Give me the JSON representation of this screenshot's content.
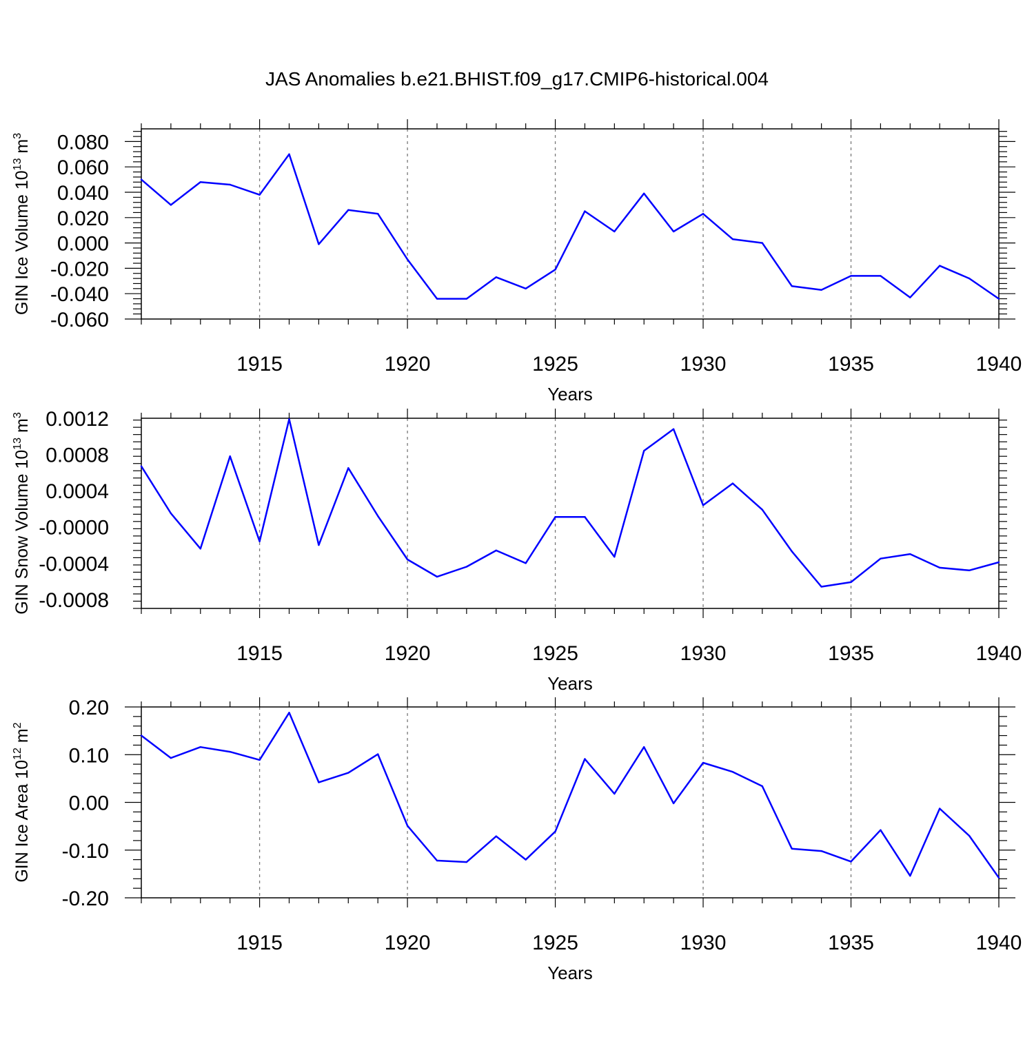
{
  "title": "JAS Anomalies b.e21.BHIST.f09_g17.CMIP6-historical.004",
  "line_color": "#0000ff",
  "chart_data": [
    {
      "type": "line",
      "title": "JAS Anomalies b.e21.BHIST.f09_g17.CMIP6-historical.004",
      "xlabel": "Years",
      "ylabel": {
        "main": "GIN Ice Volume 10",
        "exp": "13",
        "unit": " m",
        "unit_exp": "3"
      },
      "xlim": [
        1911,
        1940
      ],
      "ylim": [
        -0.06,
        0.09
      ],
      "grid": "vertical dashed lines at major x ticks",
      "x_ticks": [
        1915,
        1920,
        1925,
        1930,
        1935,
        1940
      ],
      "x_tick_labels": [
        "1915",
        "1920",
        "1925",
        "1930",
        "1935",
        "1940"
      ],
      "y_ticks": [
        -0.06,
        -0.04,
        -0.02,
        0.0,
        0.02,
        0.04,
        0.06,
        0.08
      ],
      "y_tick_labels": [
        "-0.060",
        "-0.040",
        "-0.020",
        "0.000",
        "0.020",
        "0.040",
        "0.060",
        "0.080"
      ],
      "series": [
        {
          "x": [
            1911,
            1912,
            1913,
            1914,
            1915,
            1916,
            1917,
            1918,
            1919,
            1920,
            1921,
            1922,
            1923,
            1924,
            1925,
            1926,
            1927,
            1928,
            1929,
            1930,
            1931,
            1932,
            1933,
            1934,
            1935,
            1936,
            1937,
            1938,
            1939,
            1940
          ],
          "values": [
            0.05,
            0.03,
            0.048,
            0.046,
            0.038,
            0.07,
            -0.001,
            0.026,
            0.023,
            -0.013,
            -0.044,
            -0.044,
            -0.027,
            -0.036,
            -0.021,
            0.025,
            0.009,
            0.039,
            0.009,
            0.023,
            0.003,
            0.0,
            -0.034,
            -0.037,
            -0.026,
            -0.026,
            -0.043,
            -0.018,
            -0.028,
            -0.044
          ]
        }
      ]
    },
    {
      "type": "line",
      "xlabel": "Years",
      "ylabel": {
        "main": "GIN Snow Volume 10",
        "exp": "13",
        "unit": " m",
        "unit_exp": "3"
      },
      "xlim": [
        1911,
        1940
      ],
      "ylim": [
        -0.0009,
        0.0012
      ],
      "grid": "vertical dashed lines at major x ticks",
      "x_ticks": [
        1915,
        1920,
        1925,
        1930,
        1935,
        1940
      ],
      "x_tick_labels": [
        "1915",
        "1920",
        "1925",
        "1930",
        "1935",
        "1940"
      ],
      "y_ticks": [
        -0.0008,
        -0.0004,
        0.0,
        0.0004,
        0.0008,
        0.0012
      ],
      "y_tick_labels": [
        "-0.0008",
        "-0.0004",
        "-0.0000",
        "0.0004",
        "0.0008",
        "0.0012"
      ],
      "series": [
        {
          "x": [
            1911,
            1912,
            1913,
            1914,
            1915,
            1916,
            1917,
            1918,
            1919,
            1920,
            1921,
            1922,
            1923,
            1924,
            1925,
            1926,
            1927,
            1928,
            1929,
            1930,
            1931,
            1932,
            1933,
            1934,
            1935,
            1936,
            1937,
            1938,
            1939,
            1940
          ],
          "values": [
            0.00067,
            0.00015,
            -0.00024,
            0.00078,
            -0.00016,
            0.00119,
            -0.0002,
            0.00065,
            0.00012,
            -0.00036,
            -0.00055,
            -0.00044,
            -0.00026,
            -0.0004,
            0.00011,
            0.00011,
            -0.00033,
            0.00084,
            0.00108,
            0.00024,
            0.00048,
            0.00019,
            -0.00027,
            -0.00066,
            -0.00061,
            -0.00035,
            -0.0003,
            -0.00045,
            -0.00048,
            -0.00039
          ]
        }
      ]
    },
    {
      "type": "line",
      "xlabel": "Years",
      "ylabel": {
        "main": "GIN Ice Area 10",
        "exp": "12",
        "unit": " m",
        "unit_exp": "2"
      },
      "xlim": [
        1911,
        1940
      ],
      "ylim": [
        -0.2,
        0.2
      ],
      "grid": "vertical dashed lines at major x ticks",
      "x_ticks": [
        1915,
        1920,
        1925,
        1930,
        1935,
        1940
      ],
      "x_tick_labels": [
        "1915",
        "1920",
        "1925",
        "1930",
        "1935",
        "1940"
      ],
      "y_ticks": [
        -0.2,
        -0.1,
        0.0,
        0.1,
        0.2
      ],
      "y_tick_labels": [
        "-0.20",
        "-0.10",
        "0.00",
        "0.10",
        "0.20"
      ],
      "series": [
        {
          "x": [
            1911,
            1912,
            1913,
            1914,
            1915,
            1916,
            1917,
            1918,
            1919,
            1920,
            1921,
            1922,
            1923,
            1924,
            1925,
            1926,
            1927,
            1928,
            1929,
            1930,
            1931,
            1932,
            1933,
            1934,
            1935,
            1936,
            1937,
            1938,
            1939,
            1940
          ],
          "values": [
            0.14,
            0.093,
            0.116,
            0.106,
            0.089,
            0.188,
            0.042,
            0.062,
            0.101,
            -0.049,
            -0.122,
            -0.125,
            -0.071,
            -0.12,
            -0.061,
            0.091,
            0.018,
            0.116,
            -0.002,
            0.083,
            0.064,
            0.034,
            -0.097,
            -0.102,
            -0.124,
            -0.058,
            -0.154,
            -0.013,
            -0.07,
            -0.158
          ]
        }
      ]
    }
  ]
}
